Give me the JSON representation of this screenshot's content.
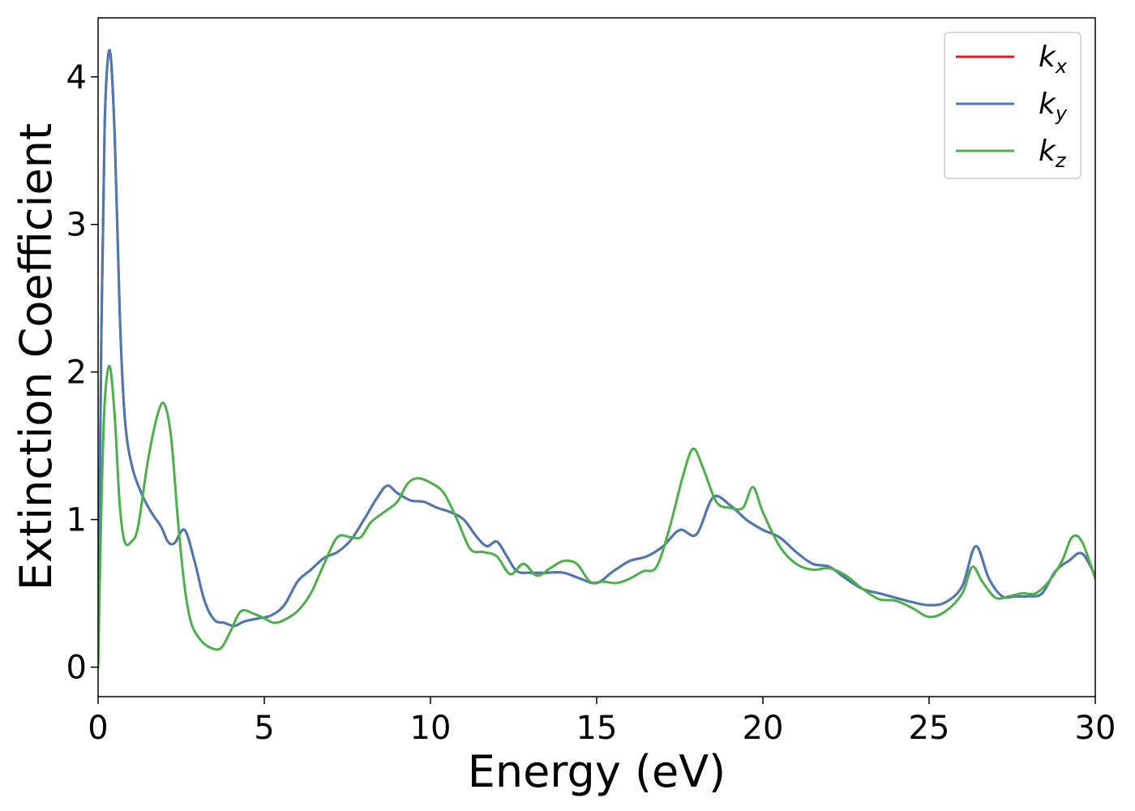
{
  "chart_data": {
    "type": "line",
    "title": "",
    "xlabel": "Energy (eV)",
    "ylabel": "Extinction Coefficient",
    "xlim": [
      0,
      30
    ],
    "ylim": [
      -0.2,
      4.4
    ],
    "xticks": [
      0,
      5,
      10,
      15,
      20,
      25,
      30
    ],
    "xtick_labels": [
      "0",
      "5",
      "10",
      "15",
      "20",
      "25",
      "30"
    ],
    "yticks": [
      0,
      1,
      2,
      3,
      4
    ],
    "ytick_labels": [
      "0",
      "1",
      "2",
      "3",
      "4"
    ],
    "grid": false,
    "legend": {
      "position": "top-right",
      "entries": [
        {
          "base": "k",
          "sub": "x",
          "color": "#e41a1c"
        },
        {
          "base": "k",
          "sub": "y",
          "color": "#4a7ab5"
        },
        {
          "base": "k",
          "sub": "z",
          "color": "#4daf4a"
        }
      ]
    },
    "series": [
      {
        "name": "k_x",
        "color": "#e41a1c",
        "x": [
          0,
          0.1,
          0.2,
          0.35,
          0.5,
          0.65,
          0.8,
          1.0,
          1.3,
          1.6,
          1.9,
          2.1,
          2.3,
          2.6,
          2.9,
          3.2,
          3.5,
          3.8,
          4.1,
          4.4,
          4.8,
          5.2,
          5.6,
          6.0,
          6.4,
          6.8,
          7.2,
          7.6,
          8.0,
          8.4,
          8.7,
          9.0,
          9.4,
          9.8,
          10.2,
          10.6,
          11.0,
          11.4,
          11.7,
          12.0,
          12.3,
          12.6,
          13.0,
          13.5,
          14.0,
          14.5,
          15.0,
          15.5,
          16.0,
          16.5,
          17.0,
          17.5,
          18.0,
          18.5,
          19.0,
          19.5,
          20.0,
          20.5,
          21.0,
          21.5,
          22.0,
          22.5,
          23.0,
          23.5,
          24.0,
          24.5,
          25.0,
          25.5,
          26.0,
          26.4,
          26.8,
          27.2,
          27.6,
          28.0,
          28.4,
          28.8,
          29.2,
          29.6,
          30.0
        ],
        "y": [
          0.0,
          2.3,
          3.7,
          4.18,
          3.6,
          2.4,
          1.7,
          1.38,
          1.18,
          1.05,
          0.95,
          0.85,
          0.84,
          0.93,
          0.72,
          0.45,
          0.32,
          0.3,
          0.28,
          0.31,
          0.33,
          0.35,
          0.42,
          0.58,
          0.66,
          0.74,
          0.78,
          0.86,
          1.0,
          1.15,
          1.23,
          1.18,
          1.13,
          1.12,
          1.08,
          1.05,
          1.0,
          0.88,
          0.82,
          0.85,
          0.75,
          0.65,
          0.64,
          0.64,
          0.64,
          0.6,
          0.57,
          0.65,
          0.72,
          0.75,
          0.82,
          0.93,
          0.9,
          1.15,
          1.1,
          1.0,
          0.93,
          0.88,
          0.78,
          0.7,
          0.68,
          0.6,
          0.53,
          0.5,
          0.47,
          0.44,
          0.42,
          0.44,
          0.55,
          0.82,
          0.6,
          0.48,
          0.48,
          0.48,
          0.5,
          0.65,
          0.72,
          0.77,
          0.62
        ]
      },
      {
        "name": "k_y",
        "color": "#4a7ab5",
        "x": [
          0,
          0.1,
          0.2,
          0.35,
          0.5,
          0.65,
          0.8,
          1.0,
          1.3,
          1.6,
          1.9,
          2.1,
          2.3,
          2.6,
          2.9,
          3.2,
          3.5,
          3.8,
          4.1,
          4.4,
          4.8,
          5.2,
          5.6,
          6.0,
          6.4,
          6.8,
          7.2,
          7.6,
          8.0,
          8.4,
          8.7,
          9.0,
          9.4,
          9.8,
          10.2,
          10.6,
          11.0,
          11.4,
          11.7,
          12.0,
          12.3,
          12.6,
          13.0,
          13.5,
          14.0,
          14.5,
          15.0,
          15.5,
          16.0,
          16.5,
          17.0,
          17.5,
          18.0,
          18.5,
          19.0,
          19.5,
          20.0,
          20.5,
          21.0,
          21.5,
          22.0,
          22.5,
          23.0,
          23.5,
          24.0,
          24.5,
          25.0,
          25.5,
          26.0,
          26.4,
          26.8,
          27.2,
          27.6,
          28.0,
          28.4,
          28.8,
          29.2,
          29.6,
          30.0
        ],
        "y": [
          0.0,
          2.3,
          3.7,
          4.18,
          3.6,
          2.4,
          1.7,
          1.38,
          1.18,
          1.05,
          0.95,
          0.85,
          0.84,
          0.93,
          0.72,
          0.45,
          0.32,
          0.3,
          0.28,
          0.31,
          0.33,
          0.35,
          0.42,
          0.58,
          0.66,
          0.74,
          0.78,
          0.86,
          1.0,
          1.15,
          1.23,
          1.18,
          1.13,
          1.12,
          1.08,
          1.05,
          1.0,
          0.88,
          0.82,
          0.85,
          0.75,
          0.65,
          0.64,
          0.64,
          0.64,
          0.6,
          0.57,
          0.65,
          0.72,
          0.75,
          0.82,
          0.93,
          0.9,
          1.15,
          1.1,
          1.0,
          0.93,
          0.88,
          0.78,
          0.7,
          0.68,
          0.6,
          0.53,
          0.5,
          0.47,
          0.44,
          0.42,
          0.44,
          0.55,
          0.82,
          0.6,
          0.48,
          0.48,
          0.48,
          0.5,
          0.65,
          0.72,
          0.77,
          0.62
        ]
      },
      {
        "name": "k_z",
        "color": "#4daf4a",
        "x": [
          0,
          0.1,
          0.2,
          0.35,
          0.5,
          0.65,
          0.8,
          1.0,
          1.2,
          1.5,
          1.8,
          2.0,
          2.2,
          2.4,
          2.6,
          2.8,
          3.1,
          3.4,
          3.7,
          4.0,
          4.3,
          4.7,
          5.0,
          5.3,
          5.6,
          6.0,
          6.4,
          6.8,
          7.2,
          7.6,
          7.9,
          8.2,
          8.6,
          9.0,
          9.3,
          9.6,
          10.0,
          10.4,
          10.8,
          11.2,
          11.6,
          12.0,
          12.4,
          12.8,
          13.2,
          13.6,
          14.0,
          14.4,
          14.8,
          15.2,
          15.6,
          16.0,
          16.4,
          16.8,
          17.2,
          17.6,
          17.9,
          18.2,
          18.6,
          19.0,
          19.4,
          19.7,
          20.0,
          20.5,
          21.0,
          21.5,
          22.0,
          22.5,
          23.0,
          23.5,
          24.0,
          24.5,
          25.0,
          25.5,
          26.0,
          26.3,
          26.6,
          27.0,
          27.4,
          27.8,
          28.2,
          28.6,
          29.0,
          29.3,
          29.6,
          30.0
        ],
        "y": [
          0.0,
          1.1,
          1.8,
          2.04,
          1.7,
          1.1,
          0.85,
          0.85,
          0.95,
          1.4,
          1.72,
          1.78,
          1.55,
          1.0,
          0.55,
          0.3,
          0.18,
          0.13,
          0.13,
          0.25,
          0.38,
          0.36,
          0.33,
          0.3,
          0.32,
          0.38,
          0.5,
          0.7,
          0.88,
          0.88,
          0.88,
          0.98,
          1.05,
          1.12,
          1.24,
          1.28,
          1.25,
          1.18,
          1.0,
          0.8,
          0.78,
          0.75,
          0.63,
          0.7,
          0.62,
          0.67,
          0.72,
          0.7,
          0.58,
          0.58,
          0.57,
          0.6,
          0.65,
          0.68,
          0.95,
          1.3,
          1.48,
          1.35,
          1.12,
          1.08,
          1.08,
          1.22,
          1.05,
          0.82,
          0.7,
          0.66,
          0.67,
          0.62,
          0.53,
          0.46,
          0.45,
          0.4,
          0.34,
          0.38,
          0.5,
          0.68,
          0.58,
          0.47,
          0.48,
          0.5,
          0.5,
          0.58,
          0.72,
          0.88,
          0.85,
          0.6
        ]
      }
    ]
  }
}
